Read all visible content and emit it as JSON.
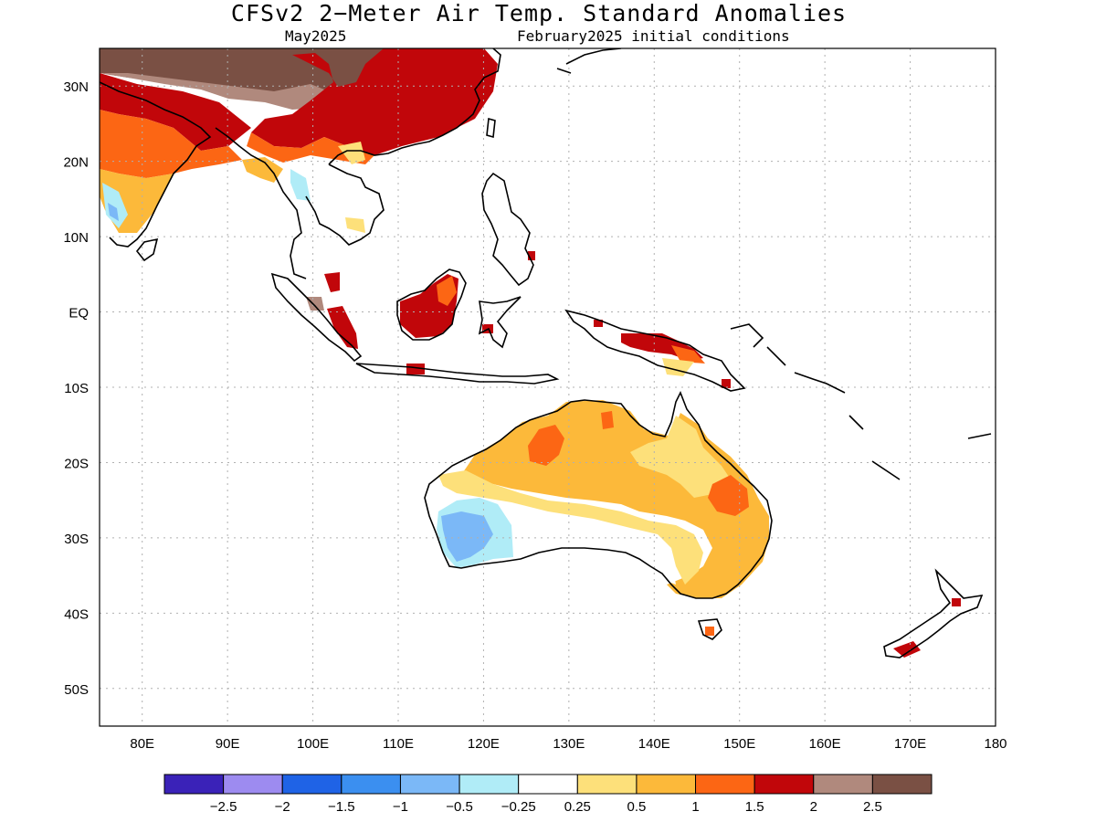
{
  "map": {
    "title": "CFSv2 2−Meter Air Temp. Standard Anomalies",
    "valid_month": "May2025",
    "initial_conditions": "February2025 initial conditions",
    "lon_labels": [
      "80E",
      "90E",
      "100E",
      "110E",
      "120E",
      "130E",
      "140E",
      "150E",
      "160E",
      "170E",
      "180"
    ],
    "lat_labels": [
      "30N",
      "20N",
      "10N",
      "EQ",
      "10S",
      "20S",
      "30S",
      "40S",
      "50S"
    ],
    "colorbar": {
      "colors": [
        "#3a22b8",
        "#9d8bf0",
        "#1f63e6",
        "#3b8ff0",
        "#7bb8f7",
        "#b0ecf7",
        "#ffffff",
        "#fde07a",
        "#fcb93a",
        "#fc6614",
        "#c1060a",
        "#b0897d",
        "#7a5044"
      ],
      "labels": [
        "−2.5",
        "−2",
        "−1.5",
        "−1",
        "−0.5",
        "−0.25",
        "0.25",
        "0.5",
        "1",
        "1.5",
        "2",
        "2.5"
      ]
    },
    "colors": {
      "neg_strong": "#7bb8f7",
      "neg_weak": "#b0ecf7",
      "pos_weak": "#fde07a",
      "pos_mod": "#fcb93a",
      "pos_high": "#fc6614",
      "pos_vhigh": "#c1060a",
      "pos_ext": "#b0897d",
      "pos_max": "#7a5044",
      "coast": "#000000",
      "grid": "#b0b0b0"
    }
  }
}
